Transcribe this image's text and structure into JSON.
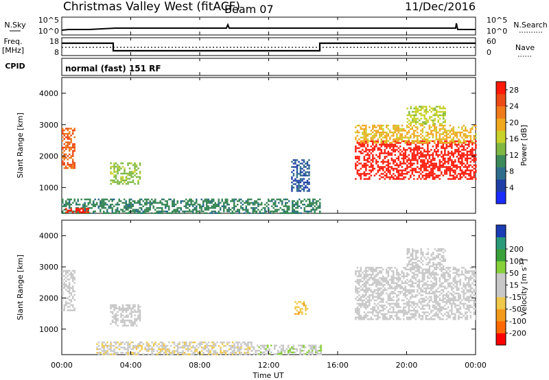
{
  "header": {
    "site": "Christmas Valley West (fitACF)",
    "beam": "Beam 07",
    "date": "11/Dec/2016"
  },
  "params": {
    "nsky_label": "N.Sky",
    "nsearch_label": "N.Search",
    "freq_label_1": "Freq.",
    "freq_label_2": "[MHz]",
    "nave_label": "Nave",
    "cpid_label": "CPID",
    "cpid_value": "normal (fast) 151 RF",
    "noise_ticks_left": [
      "10^5",
      "10^0"
    ],
    "noise_ticks_right": [
      "10^5",
      "10^0"
    ],
    "freq_ticks": [
      "18",
      "8"
    ],
    "nave_ticks": [
      "60",
      "0"
    ]
  },
  "chart_data": [
    {
      "type": "heatmap",
      "name": "power",
      "ylabel": "Slant Range [km]",
      "yticks": [
        "1000",
        "2000",
        "3000",
        "4000"
      ],
      "ylim": [
        180,
        4500
      ],
      "colorbar": {
        "label": "Power [dB]",
        "ticks": [
          "4",
          "8",
          "12",
          "16",
          "20",
          "24",
          "28"
        ],
        "range": [
          0,
          30
        ],
        "colors": [
          "#1a2bff",
          "#1f3fa6",
          "#2e6e8c",
          "#3d8a5a",
          "#7fb843",
          "#c9d22a",
          "#f0a81f",
          "#f07a1a",
          "#ec4a16",
          "#ff1a0a"
        ]
      },
      "regions": [
        {
          "x0": 0.0,
          "x1": 0.7,
          "r0": 1600,
          "r1": 2900,
          "v": 24
        },
        {
          "x0": 2.8,
          "x1": 4.5,
          "r0": 1100,
          "r1": 1800,
          "v": 14
        },
        {
          "x0": 0.0,
          "x1": 15.0,
          "r0": 200,
          "r1": 650,
          "v": 10
        },
        {
          "x0": 0.2,
          "x1": 1.5,
          "r0": 200,
          "r1": 350,
          "v": 28
        },
        {
          "x0": 13.3,
          "x1": 14.3,
          "r0": 900,
          "r1": 1900,
          "v": 6
        },
        {
          "x0": 17.0,
          "x1": 24.0,
          "r0": 1300,
          "r1": 2500,
          "v": 29
        },
        {
          "x0": 17.0,
          "x1": 24.0,
          "r0": 2400,
          "r1": 3000,
          "v": 19
        },
        {
          "x0": 20.0,
          "x1": 22.2,
          "r0": 3000,
          "r1": 3600,
          "v": 16
        }
      ]
    },
    {
      "type": "heatmap",
      "name": "velocity",
      "xlabel": "Time UT",
      "xticks": [
        "00:00",
        "04:00",
        "08:00",
        "12:00",
        "16:00",
        "20:00",
        "00:00"
      ],
      "xlim": [
        0,
        24
      ],
      "ylabel": "Slant Range [km]",
      "yticks": [
        "1000",
        "2000",
        "3000",
        "4000"
      ],
      "ylim": [
        180,
        4500
      ],
      "colorbar": {
        "label": "Velocity [m s-1]",
        "label_main": "Velocity [m s",
        "label_sup": "-1",
        "label_end": "]",
        "ticks": [
          "-200",
          "-100",
          "-50",
          "-15",
          "15",
          "50",
          "100",
          "200"
        ],
        "range": [
          -250,
          250
        ],
        "colors": [
          "#ff0000",
          "#ff6a00",
          "#f39a1a",
          "#f0c84a",
          "#c8c8c8",
          "#c8c8c8",
          "#86d03a",
          "#3aa03a",
          "#2a9a7a",
          "#1a3cb4"
        ]
      },
      "regions": [
        {
          "x0": 0.0,
          "x1": 0.7,
          "r0": 1600,
          "r1": 2900,
          "v": 0
        },
        {
          "x0": 2.8,
          "x1": 4.5,
          "r0": 1100,
          "r1": 1800,
          "v": 0
        },
        {
          "x0": 2.0,
          "x1": 11.0,
          "r0": 200,
          "r1": 600,
          "v": -40
        },
        {
          "x0": 11.0,
          "x1": 15.0,
          "r0": 200,
          "r1": 500,
          "v": 40
        },
        {
          "x0": 13.5,
          "x1": 14.2,
          "r0": 1500,
          "r1": 1900,
          "v": -80
        },
        {
          "x0": 17.0,
          "x1": 24.0,
          "r0": 1300,
          "r1": 3000,
          "v": 0
        },
        {
          "x0": 20.0,
          "x1": 22.2,
          "r0": 3000,
          "r1": 3600,
          "v": 0
        }
      ]
    }
  ]
}
